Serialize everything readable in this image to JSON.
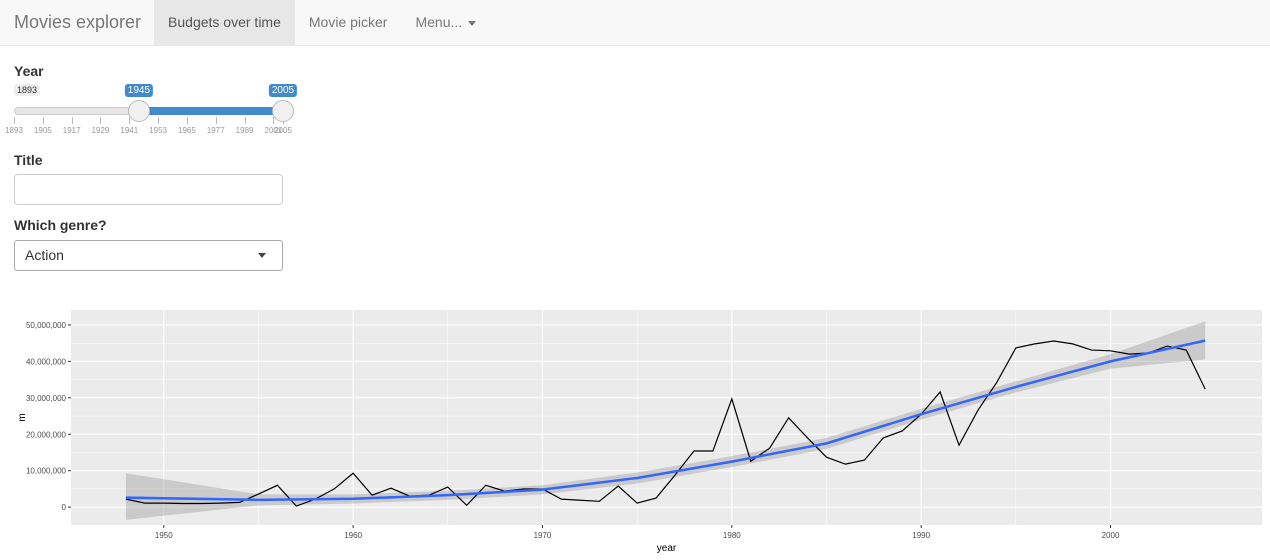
{
  "navbar": {
    "brand": "Movies explorer",
    "tabs": [
      "Budgets over time",
      "Movie picker",
      "Menu..."
    ]
  },
  "sidebar": {
    "year": {
      "label": "Year",
      "min": 1893,
      "max": 2005,
      "from": 1945,
      "to": 2005,
      "ticks": [
        1893,
        1905,
        1917,
        1929,
        1941,
        1953,
        1965,
        1977,
        1989,
        2001,
        2005
      ]
    },
    "title_label": "Title",
    "genre": {
      "label": "Which genre?",
      "selected": "Action"
    }
  },
  "chart_data": {
    "type": "line",
    "x_label": "year",
    "y_label": "m",
    "color": "#000000",
    "x": [
      1948,
      1949,
      1950,
      1951,
      1952,
      1953,
      1954,
      1955,
      1956,
      1957,
      1958,
      1959,
      1960,
      1961,
      1962,
      1963,
      1964,
      1965,
      1966,
      1967,
      1968,
      1969,
      1970,
      1971,
      1972,
      1973,
      1974,
      1975,
      1976,
      1977,
      1978,
      1979,
      1980,
      1981,
      1982,
      1983,
      1984,
      1985,
      1986,
      1987,
      1988,
      1989,
      1990,
      1991,
      1992,
      1993,
      1994,
      1995,
      1996,
      1997,
      1998,
      1999,
      2000,
      2001,
      2002,
      2003,
      2004,
      2005
    ],
    "values": [
      2200000,
      1100000,
      1100000,
      1000000,
      1000000,
      1100000,
      1300000,
      3600000,
      6000000,
      300000,
      2200000,
      5000000,
      9300000,
      3300000,
      5200000,
      3000000,
      3300000,
      5500000,
      500000,
      6000000,
      4400000,
      5000000,
      5000000,
      2200000,
      1900000,
      1600000,
      5800000,
      1100000,
      2500000,
      8800000,
      15400000,
      15400000,
      29700000,
      12600000,
      16200000,
      24500000,
      19000000,
      13700000,
      11800000,
      12900000,
      19000000,
      20900000,
      25500000,
      31600000,
      17000000,
      26600000,
      34300000,
      43700000,
      44800000,
      45600000,
      44800000,
      43100000,
      42900000,
      42000000,
      42300000,
      44200000,
      43100000,
      32400000
    ],
    "smooth": {
      "color": "#3366ff",
      "ribbon_color": "#999999",
      "x": [
        1948,
        1955,
        1960,
        1965,
        1970,
        1975,
        1980,
        1985,
        1990,
        1995,
        2000,
        2005
      ],
      "values": [
        2600000,
        2000000,
        2300000,
        3300000,
        4800000,
        8000000,
        12500000,
        17500000,
        25500000,
        33000000,
        40000000,
        45700000
      ],
      "lower": [
        -3500000,
        500000,
        1000000,
        2000000,
        3500000,
        6500000,
        11000000,
        16000000,
        24000000,
        31500000,
        38000000,
        40500000
      ],
      "upper": [
        9300000,
        3500000,
        3500000,
        4500000,
        6000000,
        9500000,
        14000000,
        19000000,
        27000000,
        34500000,
        42000000,
        51000000
      ]
    },
    "xlim": [
      1945.1,
      2008.0
    ],
    "ylim": [
      -4900000,
      54100000
    ],
    "xticks": [
      1950,
      1960,
      1970,
      1980,
      1990,
      2000
    ],
    "yticks": [
      0,
      {
        "value": 10000000,
        "label": "10,000,000"
      },
      {
        "value": 20000000,
        "label": "20,000,000"
      },
      {
        "value": 30000000,
        "label": "30,000,000"
      },
      {
        "value": 40000000,
        "label": "40,000,000"
      },
      {
        "value": 50000000,
        "label": "50,000,000"
      }
    ],
    "grid": true
  }
}
